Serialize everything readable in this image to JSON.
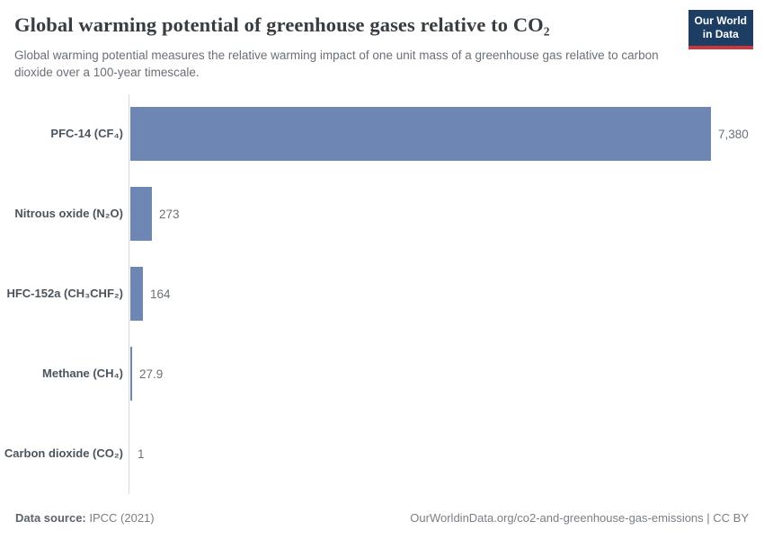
{
  "header": {
    "title": "Global warming potential of greenhouse gases relative to CO₂",
    "subtitle": "Global warming potential measures the relative warming impact of one unit mass of a greenhouse gas relative to carbon dioxide over a 100-year timescale."
  },
  "logo": {
    "line1": "Our World",
    "line2": "in Data",
    "background_color": "#1d3d63",
    "accent_color": "#c9383f"
  },
  "chart_data": {
    "type": "bar",
    "orientation": "horizontal",
    "categories": [
      "PFC-14 (CF₄)",
      "Nitrous oxide (N₂O)",
      "HFC-152a (CH₃CHF₂)",
      "Methane (CH₄)",
      "Carbon dioxide (CO₂)"
    ],
    "values": [
      7380,
      273,
      164,
      27.9,
      1
    ],
    "value_labels": [
      "7,380",
      "273",
      "164",
      "27.9",
      "1"
    ],
    "xlim": [
      0,
      7380
    ],
    "grid": false,
    "legend": "none",
    "bar_color": "#6d86b3",
    "axis_color": "#d5dade"
  },
  "footer": {
    "source_label": "Data source:",
    "source_value": " IPCC (2021)",
    "link": "OurWorldinData.org/co2-and-greenhouse-gas-emissions | CC BY"
  }
}
